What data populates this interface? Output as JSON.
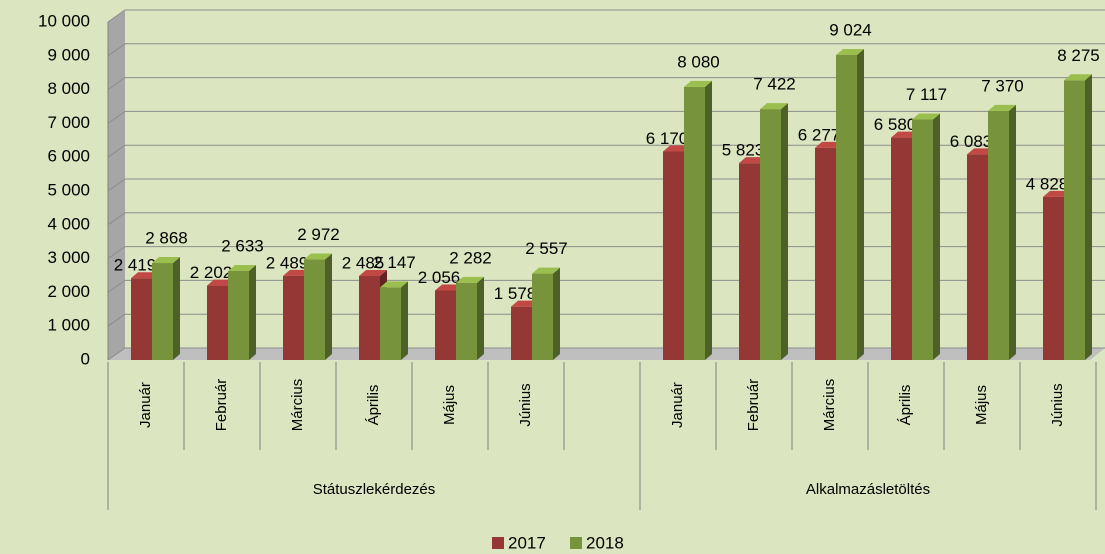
{
  "chart_data": {
    "type": "bar3d",
    "categories": [
      "Január",
      "Február",
      "Március",
      "Április",
      "Május",
      "Június",
      null,
      "Január",
      "Február",
      "Március",
      "Április",
      "Május",
      "Június"
    ],
    "groups": [
      "Státuszlekérdezés",
      "Alkalmazásletöltés"
    ],
    "series": [
      {
        "name": "2017",
        "color": "#953735",
        "values": [
          2419,
          2202,
          2489,
          2485,
          2056,
          1578,
          null,
          6170,
          5823,
          6277,
          6580,
          6083,
          4828
        ],
        "value_labels": [
          "2 419",
          "2 202",
          "2 489",
          "2 485",
          "2 056",
          "1 578",
          null,
          "6 170",
          "5 823",
          "6 277",
          "6 580",
          "6 083",
          "4 828"
        ]
      },
      {
        "name": "2018",
        "color": "#77933c",
        "values": [
          2868,
          2633,
          2972,
          2147,
          2282,
          2557,
          null,
          8080,
          7422,
          9024,
          7117,
          7370,
          8275
        ],
        "value_labels": [
          "2 868",
          "2 633",
          "2 972",
          "2 147",
          "2 282",
          "2 557",
          null,
          "8 080",
          "7 422",
          "9 024",
          "7 117",
          "7 370",
          "8 275"
        ]
      }
    ],
    "ylim": [
      0,
      10000
    ],
    "yticks": [
      0,
      {
        "value": 1000,
        "label": "1 000"
      },
      {
        "value": 2000,
        "label": "2 000"
      },
      {
        "value": 3000,
        "label": "3 000"
      },
      {
        "value": 4000,
        "label": "4 000"
      },
      {
        "value": 5000,
        "label": "5 000"
      },
      {
        "value": 6000,
        "label": "6 000"
      },
      {
        "value": 7000,
        "label": "7 000"
      },
      {
        "value": 8000,
        "label": "8 000"
      },
      {
        "value": 9000,
        "label": "9 000"
      },
      {
        "value": 10000,
        "label": "10 000"
      }
    ],
    "grid": true
  }
}
